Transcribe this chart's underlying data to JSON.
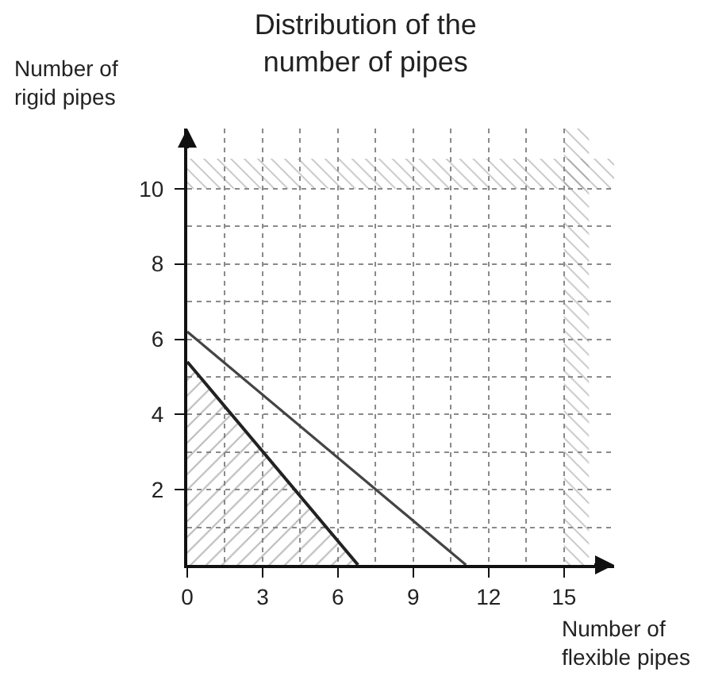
{
  "chart_data": {
    "type": "line",
    "title": "Distribution of the number of pipes",
    "xlabel": "Number of flexible pipes",
    "ylabel": "Number of rigid pipes",
    "series": [
      {
        "color": "#444444",
        "x": [
          0,
          11.1
        ],
        "values": [
          6.2,
          0
        ]
      },
      {
        "type": "area",
        "color": "#222222",
        "x": [
          0,
          6.8
        ],
        "values": [
          5.4,
          0
        ]
      }
    ],
    "xlim": [
      0,
      17
    ],
    "ylim": [
      0,
      11.6
    ],
    "xticks": [
      0,
      3,
      6,
      9,
      12,
      15
    ],
    "yticks": [
      2,
      4,
      6,
      8,
      10
    ],
    "grid": true,
    "bands": [
      {
        "axis": "x",
        "from": 15,
        "to": 16,
        "color": "#888888"
      },
      {
        "axis": "y",
        "from": 10,
        "to": 10.8,
        "color": "#888888"
      }
    ]
  }
}
